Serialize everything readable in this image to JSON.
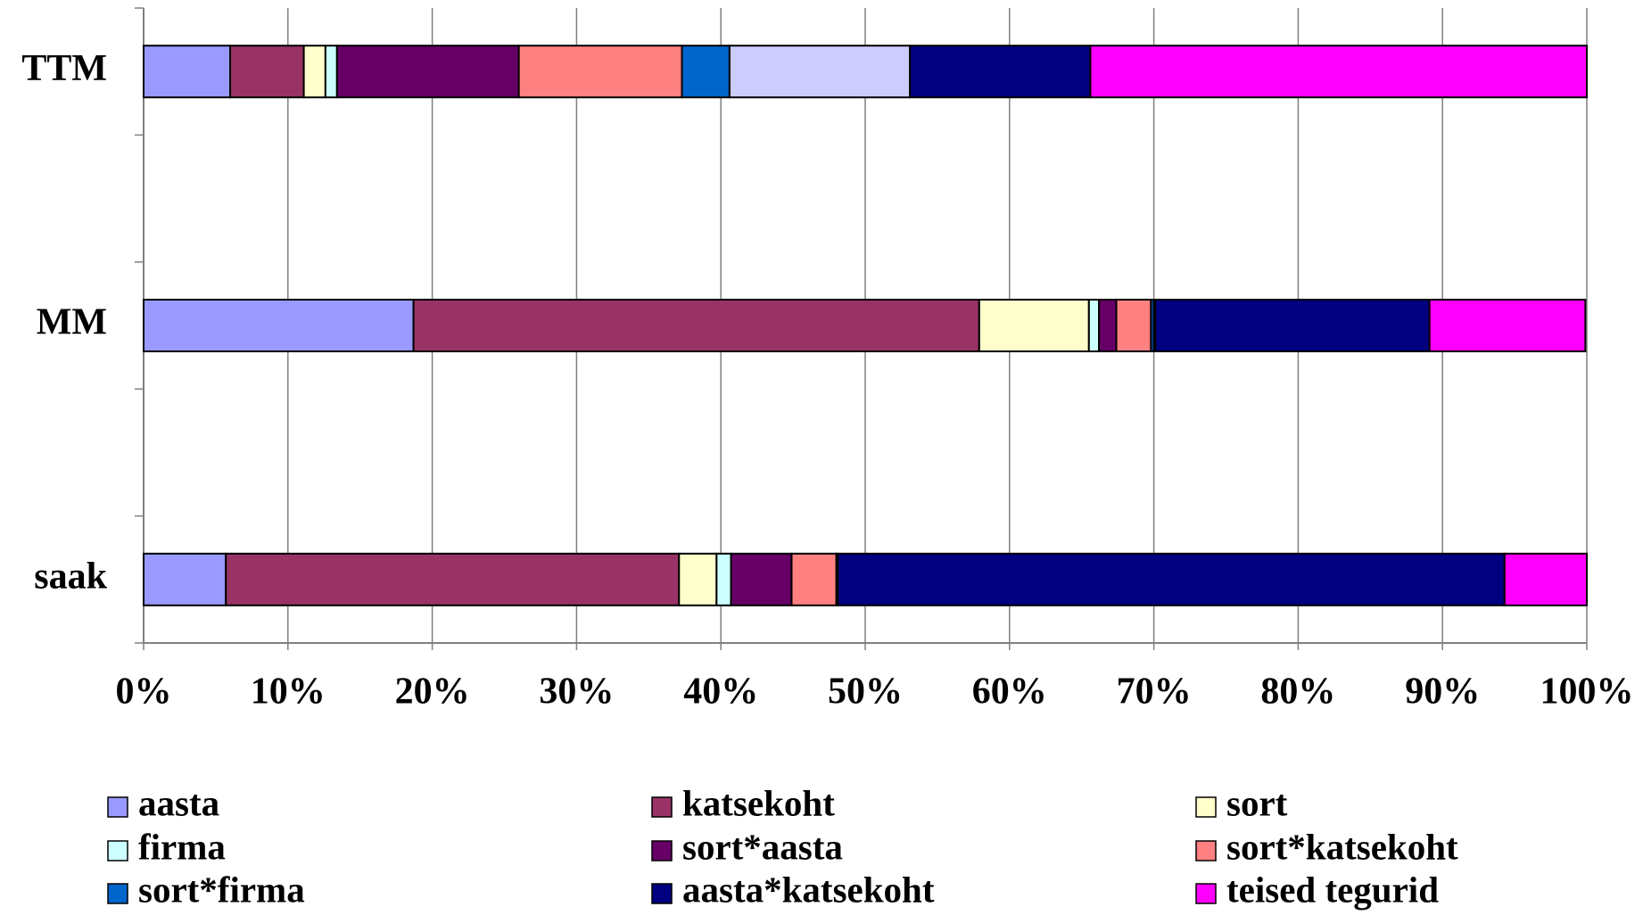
{
  "chart_data": {
    "type": "stacked_bar_horizontal",
    "categories": [
      "TTM",
      "MM",
      "saak"
    ],
    "series": [
      {
        "name": "aasta",
        "color": "#9999ff",
        "values": [
          6.0,
          18.7,
          5.7
        ]
      },
      {
        "name": "katsekoht",
        "color": "#993366",
        "values": [
          5.1,
          39.2,
          31.4
        ]
      },
      {
        "name": "sort",
        "color": "#ffffcc",
        "values": [
          1.5,
          7.6,
          2.6
        ]
      },
      {
        "name": "firma",
        "color": "#ccffff",
        "values": [
          0.8,
          0.7,
          1.0
        ]
      },
      {
        "name": "sort*aasta",
        "color": "#660066",
        "values": [
          12.6,
          1.2,
          4.2
        ]
      },
      {
        "name": "sort*katsekoht",
        "color": "#ff8080",
        "values": [
          11.3,
          2.4,
          3.1
        ]
      },
      {
        "name": "sort*firma",
        "color": "#0066cc",
        "values": [
          3.3,
          0.2,
          0.1
        ]
      },
      {
        "name": null,
        "color": "#ccccff",
        "values": [
          12.5,
          0.1,
          0
        ]
      },
      {
        "name": "aasta*katsekoht",
        "color": "#000080",
        "values": [
          12.5,
          19.0,
          46.2
        ]
      },
      {
        "name": "teised tegurid",
        "color": "#ff00ff",
        "values": [
          34.4,
          10.8,
          5.7
        ]
      }
    ],
    "xlim": [
      0,
      100
    ],
    "xticks": [
      {
        "value": 0,
        "label": "0%"
      },
      {
        "value": 10,
        "label": "10%"
      },
      {
        "value": 20,
        "label": "20%"
      },
      {
        "value": 30,
        "label": "30%"
      },
      {
        "value": 40,
        "label": "40%"
      },
      {
        "value": 50,
        "label": "50%"
      },
      {
        "value": 60,
        "label": "60%"
      },
      {
        "value": 70,
        "label": "70%"
      },
      {
        "value": 80,
        "label": "80%"
      },
      {
        "value": 90,
        "label": "90%"
      },
      {
        "value": 100,
        "label": "100%"
      }
    ],
    "grid": true
  }
}
